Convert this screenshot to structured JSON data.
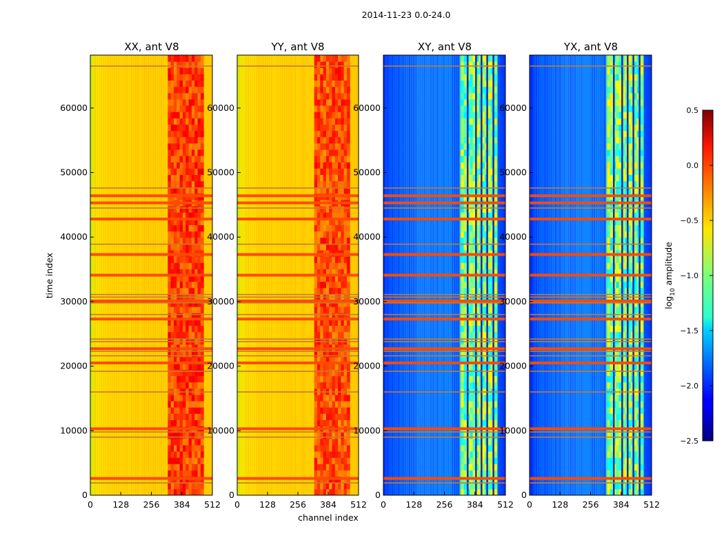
{
  "chart_data": {
    "type": "heatmap",
    "suptitle": "2014-11-23 0.0-24.0",
    "xlabel": "channel index",
    "ylabel": "time index",
    "xlim": [
      0,
      512
    ],
    "ylim": [
      0,
      68200
    ],
    "xticks": [
      "0",
      "128",
      "256",
      "384",
      "512"
    ],
    "yticks": [
      "0",
      "10000",
      "20000",
      "30000",
      "40000",
      "50000",
      "60000"
    ],
    "colorbar": {
      "label_main": "log",
      "label_sub": "10",
      "label_rest": " amplitude",
      "range": [
        -2.5,
        0.5
      ],
      "ticks": [
        "0.5",
        "0.0",
        "−0.5",
        "−1.0",
        "−1.5",
        "−2.0",
        "−2.5"
      ],
      "colormap": "jet"
    },
    "panels": [
      {
        "title": "XX, ant V8",
        "base_level": -0.4,
        "band_level": -0.05,
        "band_channels": [
          325,
          475
        ]
      },
      {
        "title": "YY, ant V8",
        "base_level": -0.4,
        "band_level": -0.1,
        "band_channels": [
          325,
          475
        ]
      },
      {
        "title": "XY, ant V8",
        "base_level": -2.0,
        "band_level": -1.0,
        "band_channels": [
          325,
          475
        ]
      },
      {
        "title": "YX, ant V8",
        "base_level": -2.0,
        "band_level": -1.0,
        "band_channels": [
          325,
          475
        ]
      }
    ],
    "flagged_time_rows": [
      1900,
      2600,
      9000,
      9800,
      10300,
      16000,
      19200,
      20500,
      21600,
      22300,
      22700,
      23800,
      24200,
      27300,
      28000,
      29800,
      30100,
      30700,
      31100,
      34100,
      37300,
      38900,
      42800,
      44500,
      45300,
      46400,
      47600,
      66500
    ],
    "flag_colors": {
      "heavy": "#ff4a00",
      "light": "#c9782f"
    }
  }
}
